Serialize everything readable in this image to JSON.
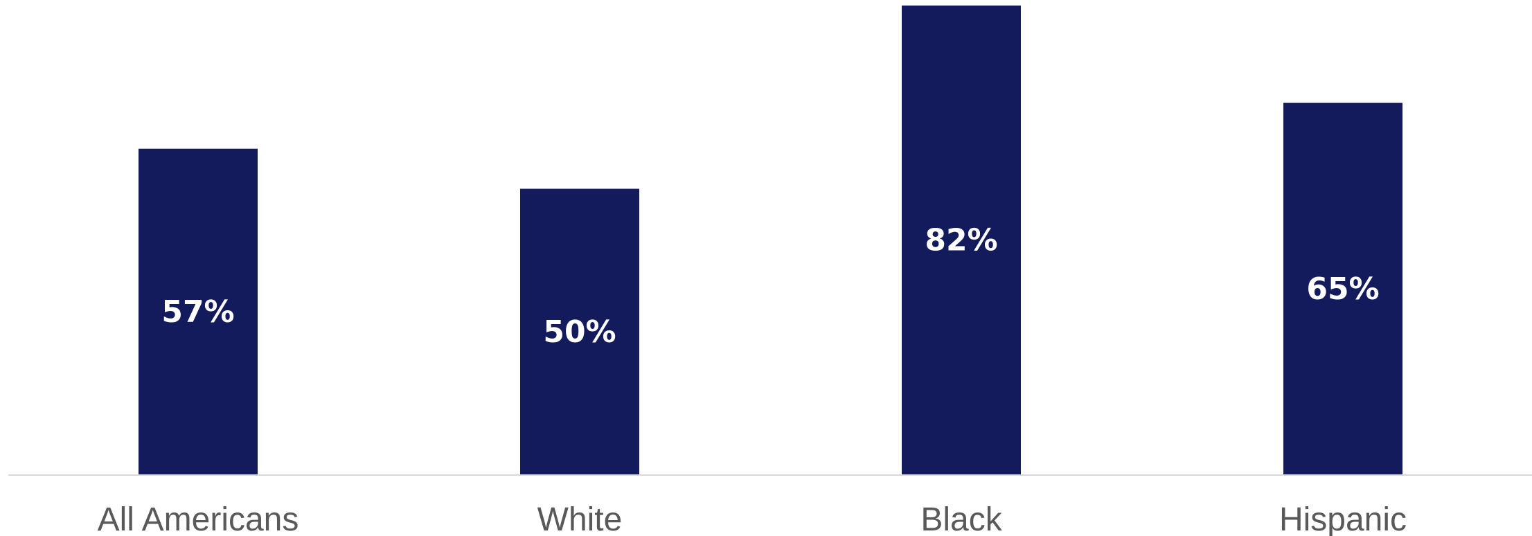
{
  "chart_data": {
    "type": "bar",
    "categories": [
      "All Americans",
      "White",
      "Black",
      "Hispanic"
    ],
    "values": [
      57,
      50,
      82,
      65
    ],
    "data_labels": [
      "57%",
      "50%",
      "82%",
      "65%"
    ],
    "unit": "%",
    "ylim": [
      0,
      82
    ],
    "grid": false,
    "legend": "none",
    "title": "",
    "xlabel": "",
    "ylabel": "",
    "colors": {
      "bar": "#131b5c",
      "data_label": "#ffffff",
      "category_label": "#595959",
      "axis_line": "#d9d9d9"
    }
  }
}
